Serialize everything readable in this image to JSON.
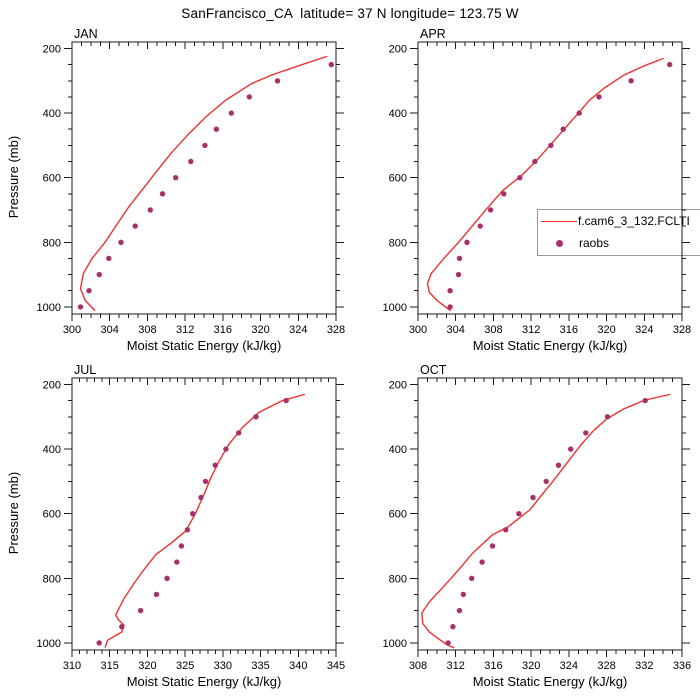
{
  "title": "SanFrancisco_CA  latitude= 37 N longitude= 123.75 W",
  "pressure_axis_label": "Pressure (mb)",
  "legend": {
    "line_label": "f.cam6_3_132.FCLTI",
    "dot_label": "raobs"
  },
  "colors": {
    "model_line": "#f23030",
    "raobs_dot": "#a83268",
    "frame": "#1a1a1a",
    "background": "#ffffff",
    "legend_border": "#999999"
  },
  "chart_data": [
    {
      "type": "line",
      "title": "JAN",
      "xlabel": "Moist Static Energy (kJ/kg)",
      "ylabel": "Pressure (mb)",
      "x_range": [
        300,
        328
      ],
      "x_tick_major": 4,
      "x_tick_minor": 1,
      "y_ticks": [
        200,
        400,
        600,
        800,
        1000
      ],
      "y_tick_minor": 50,
      "pressure_frame_range": [
        180,
        1022
      ],
      "legend_position": "none",
      "grid": false,
      "series": [
        {
          "name": "f.cam6_3_132.FCLTI",
          "style": "line",
          "points_pressure_mse": [
            [
              225,
              327.0
            ],
            [
              250,
              324.4
            ],
            [
              281,
              321.3
            ],
            [
              308,
              319.1
            ],
            [
              360,
              316.3
            ],
            [
              412,
              314.2
            ],
            [
              464,
              312.4
            ],
            [
              521,
              310.6
            ],
            [
              583,
              308.9
            ],
            [
              639,
              307.4
            ],
            [
              691,
              306.0
            ],
            [
              743,
              304.8
            ],
            [
              800,
              303.5
            ],
            [
              851,
              302.1
            ],
            [
              897,
              301.2
            ],
            [
              944,
              300.9
            ],
            [
              980,
              301.4
            ],
            [
              1011,
              302.4
            ]
          ]
        },
        {
          "name": "raobs",
          "style": "scatter",
          "points_pressure_mse": [
            [
              250,
              327.5
            ],
            [
              300,
              321.8
            ],
            [
              350,
              318.8
            ],
            [
              400,
              316.9
            ],
            [
              450,
              315.3
            ],
            [
              500,
              314.1
            ],
            [
              550,
              312.6
            ],
            [
              600,
              311.0
            ],
            [
              650,
              309.6
            ],
            [
              700,
              308.3
            ],
            [
              750,
              306.7
            ],
            [
              800,
              305.2
            ],
            [
              850,
              303.9
            ],
            [
              900,
              302.9
            ],
            [
              950,
              301.8
            ],
            [
              1000,
              300.9
            ]
          ]
        }
      ]
    },
    {
      "type": "line",
      "title": "APR",
      "xlabel": "Moist Static Energy (kJ/kg)",
      "ylabel": "Pressure (mb)",
      "x_range": [
        300,
        328
      ],
      "x_tick_major": 4,
      "x_tick_minor": 1,
      "y_ticks": [
        200,
        400,
        600,
        800,
        1000
      ],
      "y_tick_minor": 50,
      "pressure_frame_range": [
        180,
        1022
      ],
      "legend_position": "overlay-right",
      "grid": false,
      "series": [
        {
          "name": "f.cam6_3_132.FCLTI",
          "style": "line",
          "points_pressure_mse": [
            [
              231,
              326.0
            ],
            [
              255,
              323.9
            ],
            [
              283,
              321.8
            ],
            [
              324,
              319.7
            ],
            [
              360,
              318.2
            ],
            [
              407,
              316.8
            ],
            [
              453,
              315.4
            ],
            [
              500,
              314.0
            ],
            [
              546,
              312.6
            ],
            [
              593,
              311.0
            ],
            [
              639,
              309.0
            ],
            [
              696,
              307.3
            ],
            [
              748,
              305.8
            ],
            [
              800,
              304.3
            ],
            [
              851,
              302.7
            ],
            [
              897,
              301.4
            ],
            [
              928,
              301.0
            ],
            [
              955,
              301.2
            ],
            [
              980,
              302.0
            ],
            [
              1011,
              303.4
            ]
          ]
        },
        {
          "name": "raobs",
          "style": "scatter",
          "points_pressure_mse": [
            [
              250,
              326.7
            ],
            [
              300,
              322.6
            ],
            [
              350,
              319.2
            ],
            [
              400,
              317.1
            ],
            [
              450,
              315.4
            ],
            [
              500,
              314.1
            ],
            [
              550,
              312.4
            ],
            [
              600,
              310.8
            ],
            [
              650,
              309.1
            ],
            [
              700,
              307.7
            ],
            [
              750,
              306.6
            ],
            [
              800,
              305.2
            ],
            [
              850,
              304.4
            ],
            [
              900,
              304.3
            ],
            [
              950,
              303.4
            ],
            [
              1000,
              303.4
            ]
          ]
        }
      ]
    },
    {
      "type": "line",
      "title": "JUL",
      "xlabel": "Moist Static Energy (kJ/kg)",
      "ylabel": "Pressure (mb)",
      "x_range": [
        310,
        345
      ],
      "x_tick_major": 5,
      "x_tick_minor": 1,
      "y_ticks": [
        200,
        400,
        600,
        800,
        1000
      ],
      "y_tick_minor": 50,
      "pressure_frame_range": [
        180,
        1022
      ],
      "legend_position": "none",
      "grid": false,
      "series": [
        {
          "name": "f.cam6_3_132.FCLTI",
          "style": "line",
          "points_pressure_mse": [
            [
              231,
              340.8
            ],
            [
              250,
              337.9
            ],
            [
              286,
              334.8
            ],
            [
              333,
              332.6
            ],
            [
              385,
              330.8
            ],
            [
              437,
              329.5
            ],
            [
              489,
              328.4
            ],
            [
              540,
              327.5
            ],
            [
              598,
              326.4
            ],
            [
              653,
              325.1
            ],
            [
              690,
              323.2
            ],
            [
              727,
              321.1
            ],
            [
              774,
              319.5
            ],
            [
              816,
              318.2
            ],
            [
              863,
              316.9
            ],
            [
              899,
              316.1
            ],
            [
              914,
              315.8
            ],
            [
              930,
              316.2
            ],
            [
              945,
              316.9
            ],
            [
              966,
              316.6
            ],
            [
              977,
              315.8
            ],
            [
              992,
              314.7
            ],
            [
              1013,
              314.4
            ]
          ]
        },
        {
          "name": "raobs",
          "style": "scatter",
          "points_pressure_mse": [
            [
              250,
              338.4
            ],
            [
              300,
              334.4
            ],
            [
              350,
              332.1
            ],
            [
              400,
              330.4
            ],
            [
              450,
              329.0
            ],
            [
              500,
              327.7
            ],
            [
              550,
              327.1
            ],
            [
              600,
              326.0
            ],
            [
              650,
              325.3
            ],
            [
              700,
              324.5
            ],
            [
              750,
              323.9
            ],
            [
              800,
              322.6
            ],
            [
              850,
              321.2
            ],
            [
              900,
              319.1
            ],
            [
              950,
              316.6
            ],
            [
              1000,
              313.6
            ]
          ]
        }
      ]
    },
    {
      "type": "line",
      "title": "OCT",
      "xlabel": "Moist Static Energy (kJ/kg)",
      "ylabel": "Pressure (mb)",
      "x_range": [
        308,
        336
      ],
      "x_tick_major": 4,
      "x_tick_minor": 1,
      "y_ticks": [
        200,
        400,
        600,
        800,
        1000
      ],
      "y_tick_minor": 50,
      "pressure_frame_range": [
        180,
        1022
      ],
      "legend_position": "none",
      "grid": false,
      "series": [
        {
          "name": "f.cam6_3_132.FCLTI",
          "style": "line",
          "points_pressure_mse": [
            [
              231,
              334.7
            ],
            [
              248,
              332.1
            ],
            [
              276,
              329.8
            ],
            [
              307,
              328.0
            ],
            [
              343,
              326.6
            ],
            [
              390,
              325.2
            ],
            [
              439,
              323.9
            ],
            [
              489,
              322.6
            ],
            [
              539,
              321.2
            ],
            [
              587,
              319.9
            ],
            [
              640,
              317.6
            ],
            [
              665,
              315.9
            ],
            [
              722,
              313.8
            ],
            [
              774,
              312.3
            ],
            [
              826,
              310.7
            ],
            [
              873,
              309.2
            ],
            [
              907,
              308.4
            ],
            [
              940,
              308.5
            ],
            [
              966,
              309.2
            ],
            [
              990,
              310.3
            ],
            [
              1008,
              311.2
            ],
            [
              1015,
              311.8
            ]
          ]
        },
        {
          "name": "raobs",
          "style": "scatter",
          "points_pressure_mse": [
            [
              250,
              332.1
            ],
            [
              300,
              328.1
            ],
            [
              350,
              325.8
            ],
            [
              400,
              324.2
            ],
            [
              450,
              322.9
            ],
            [
              500,
              321.6
            ],
            [
              550,
              320.2
            ],
            [
              600,
              318.7
            ],
            [
              650,
              317.3
            ],
            [
              700,
              315.9
            ],
            [
              750,
              314.8
            ],
            [
              800,
              313.7
            ],
            [
              850,
              312.8
            ],
            [
              900,
              312.4
            ],
            [
              950,
              311.7
            ],
            [
              1000,
              311.2
            ]
          ]
        }
      ]
    }
  ]
}
